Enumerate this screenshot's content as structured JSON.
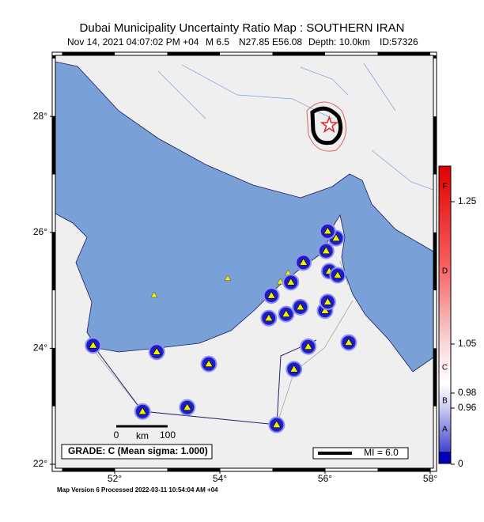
{
  "header": {
    "title": "Dubai Municipality Uncertainty Ratio Map : SOUTHERN IRAN",
    "date": "Nov 14, 2021 04:07:02 PM +04",
    "magnitude": "M 6.5",
    "location": "N27.85 E56.08",
    "depth": "Depth: 10.0km",
    "id": "ID:57326"
  },
  "map": {
    "lon_ticks": [
      {
        "value": 52,
        "label": "52°"
      },
      {
        "value": 54,
        "label": "54°"
      },
      {
        "value": 56,
        "label": "56°"
      },
      {
        "value": 58,
        "label": "58°"
      }
    ],
    "lat_ticks": [
      {
        "value": 22,
        "label": "22°"
      },
      {
        "value": 24,
        "label": "24°"
      },
      {
        "value": 26,
        "label": "26°"
      },
      {
        "value": 28,
        "label": "28°"
      }
    ],
    "epicenter": {
      "lon": 56.08,
      "lat": 27.85
    },
    "stations": [
      {
        "lon": 51.59,
        "lat": 24.05
      },
      {
        "lon": 52.8,
        "lat": 23.94
      },
      {
        "lon": 53.79,
        "lat": 23.73
      },
      {
        "lon": 52.53,
        "lat": 22.91
      },
      {
        "lon": 53.38,
        "lat": 22.98
      },
      {
        "lon": 55.08,
        "lat": 22.68
      },
      {
        "lon": 55.41,
        "lat": 23.64
      },
      {
        "lon": 55.68,
        "lat": 24.03
      },
      {
        "lon": 56.45,
        "lat": 24.1
      },
      {
        "lon": 54.98,
        "lat": 24.91
      },
      {
        "lon": 54.93,
        "lat": 24.52
      },
      {
        "lon": 55.26,
        "lat": 24.59
      },
      {
        "lon": 55.35,
        "lat": 25.14
      },
      {
        "lon": 55.53,
        "lat": 24.71
      },
      {
        "lon": 55.59,
        "lat": 25.48
      },
      {
        "lon": 56.02,
        "lat": 25.68
      },
      {
        "lon": 56.0,
        "lat": 24.65
      },
      {
        "lon": 56.05,
        "lat": 24.8
      },
      {
        "lon": 56.08,
        "lat": 25.33
      },
      {
        "lon": 56.21,
        "lat": 25.9
      },
      {
        "lon": 56.05,
        "lat": 26.02
      },
      {
        "lon": 56.24,
        "lat": 25.26
      }
    ],
    "small_events": [
      {
        "lon": 52.75,
        "lat": 24.92
      },
      {
        "lon": 54.15,
        "lat": 25.21
      },
      {
        "lon": 55.15,
        "lat": 25.15
      },
      {
        "lon": 55.3,
        "lat": 25.3
      }
    ]
  },
  "colorbar": {
    "grades": [
      "F",
      "D",
      "C",
      "B",
      "A"
    ],
    "ticks": [
      1.25,
      1.05,
      0.98,
      0.96,
      0
    ]
  },
  "scale_bar": {
    "start": "0",
    "end": "100",
    "unit": "km"
  },
  "grade_box": "GRADE: C (Mean sigma: 1.000)",
  "mi_legend": "MI = 6.0",
  "footer": "Map Version 6 Processed 2022-03-11 10:54:04 AM +04"
}
